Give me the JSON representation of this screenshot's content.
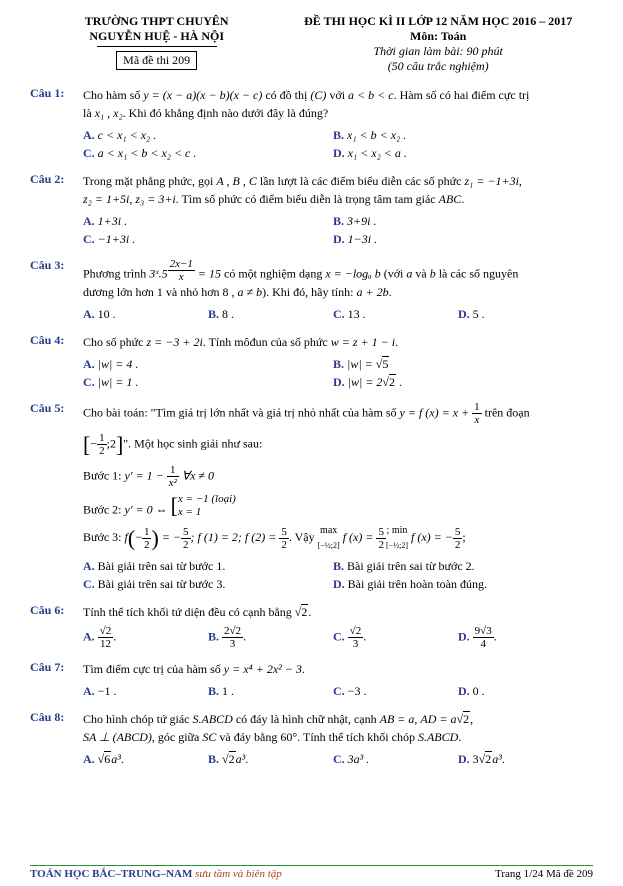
{
  "header": {
    "school_l1": "TRƯỜNG THPT CHUYÊN",
    "school_l2": "NGUYỄN HUỆ - HÀ NỘI",
    "code_label": "Mã đề thi 209",
    "title": "ĐỀ THI HỌC KÌ II LỚP 12 NĂM HỌC 2016 – 2017",
    "subject_label": "Môn: Toán",
    "time_label": "Thời gian làm bài: 90 phút",
    "count_label": "(50 câu trắc nghiệm)"
  },
  "labels": {
    "cau": "Câu",
    "A": "A.",
    "B": "B.",
    "C": "C.",
    "D": "D."
  },
  "q1": {
    "num": "Câu 1:",
    "t1": "Cho hàm số ",
    "f": "y = (x − a)(x − b)(x − c)",
    "t2": " có đồ thị ",
    "cg": "(C)",
    "t3": " với ",
    "cond": "a < b < c",
    "t4": ". Hàm số có hai điểm cực trị",
    "t5": "là ",
    "x12": "x₁ , x₂",
    "t6": ". Khi đó khẳng định nào dưới đây là đúng?",
    "A": "c < x₁ < x₂ .",
    "B": "x₁ < b < x₂ .",
    "C": "a < x₁ < b < x₂ < c .",
    "D": "x₁ < x₂ < a ."
  },
  "q2": {
    "num": "Câu 2:",
    "t1": "Trong mặt phẳng phức, gọi ",
    "abc": "A , B , C",
    "t2": " lần lượt là các điểm biểu diễn các số phức ",
    "z1": "z₁ = −1+3i",
    "t3": ",",
    "z2": "z₂ = 1+5i",
    "z3": "z₃ = 3+i",
    "t4": ". Tìm số phức có điểm biểu diễn là trọng tâm tam giác ",
    "abc2": "ABC",
    "t5": ".",
    "A": "1+3i .",
    "B": "3+9i .",
    "C": "−1+3i .",
    "D": "1−3i ."
  },
  "q3": {
    "num": "Câu 3:",
    "t1": "Phương trình ",
    "eq_a": "3ˣ.5",
    "eq_exp_num": "2x−1",
    "eq_exp_den": "x",
    "eq_b": " = 15",
    "t2": " có một nghiệm dạng ",
    "sol": "x = −logₐ b",
    "t3": " (với ",
    "ab": "a",
    "t4": " và ",
    "b": "b",
    "t5": " là các số nguyên",
    "t6": "dương lớn hơn 1 và nhỏ hơn 8 , ",
    "neq": "a ≠ b",
    "t7": "). Khi đó, hãy tính: ",
    "expr": "a + 2b",
    "t8": ".",
    "A": "10 .",
    "B": "8 .",
    "C": "13 .",
    "D": "5 ."
  },
  "q4": {
    "num": "Câu 4:",
    "t1": "Cho số phức ",
    "z": "z = −3 + 2i",
    "t2": ". Tính môđun của số phức ",
    "w": "w = z + 1 − i",
    "t3": ".",
    "Aeq": "|w| = 4 .",
    "Bw": "|w| = ",
    "r5": "5",
    "Ceq": "|w| = 1 .",
    "Dw": "|w| = 2",
    "r2": "2",
    "dot": " ."
  },
  "q5": {
    "num": "Câu 5:",
    "t1": "Cho bài toán: \"Tìm giá trị lớn nhất và giá trị nhỏ nhất của hàm số ",
    "yfx": "y = f (x) = x + ",
    "one": "1",
    "x": "x",
    "t2": " trên đoạn",
    "neg_half": "−",
    "half_num": "1",
    "half_den": "2",
    "two": "2",
    "t3": "\". Một học sinh giải như sau:",
    "b1l": "Bước 1: ",
    "b1eq": "y′ = 1 − ",
    "b1one": "1",
    "b1x2": "x²",
    "b1cond": "   ∀x ≠ 0",
    "b2l": "Bước 2: ",
    "b2eq": "y′ = 0 ⇔ ",
    "b2c1": "x = −1 (loại)",
    "b2c2": "x = 1",
    "b3l": "Bước 3: ",
    "b3f": "f",
    "b3lp": "(−",
    "b3hn": "1",
    "b3hd": "2",
    "b3rp": ")",
    "b3eq": " = −",
    "b3v5": "5",
    "b3v2": "2",
    "b3f1": "; f (1) = 2; f (2) = ",
    "b3vn": "5",
    "b3vd": "2",
    "b3vay": ". Vậy ",
    "b3max": "max",
    "b3int": "[−½;2]",
    "b3fx": " f (x) = ",
    "b3mn": "5",
    "b3md": "2",
    "b3min": "; min",
    "b3fx2": " f (x) = −",
    "b3mn2": "5",
    "b3md2": "2",
    "b3end": ";",
    "A": "Bài giải trên sai từ bước 1.",
    "B": "Bài giải trên sai từ bước 2.",
    "C": "Bài giải trên sai từ bước 3.",
    "D": "Bài giải trên hoàn toàn đúng."
  },
  "q6": {
    "num": "Câu 6:",
    "t1": "Tính thể tích khối tứ diện đều có cạnh bằng ",
    "r2": "2",
    "dot": ".",
    "An": "√2",
    "Ad": "12",
    "Bn": "2√2",
    "Bd": "3",
    "Cn": "√2",
    "Cd": "3",
    "Dn": "9√3",
    "Dd": "4"
  },
  "q7": {
    "num": "Câu 7:",
    "t1": "Tìm điểm cực trị của hàm số ",
    "eq": "y = x⁴ + 2x² − 3",
    "dot": ".",
    "A": "−1 .",
    "B": "1 .",
    "C": "−3 .",
    "D": "0 ."
  },
  "q8": {
    "num": "Câu 8:",
    "t1": "Cho hình chóp tứ giác ",
    "s": "S.ABCD",
    "t2": " có đáy là hình chữ nhật, cạnh ",
    "ab": "AB = a",
    "t3": ", ",
    "ad": "AD = a",
    "r2": "2",
    "t4": ",",
    "sa": "SA ⊥ (ABCD)",
    "t5": ", góc giữa ",
    "sc": "SC",
    "t6": " và đáy bằng ",
    "ang": "60°",
    "t7": ". Tính thể tích khối chóp ",
    "s2": "S.ABCD",
    "dot": ".",
    "A6": "6",
    "Aa3": "a³",
    "Adot": ".",
    "B2": "2",
    "Ba3": "a³",
    "Bdot": ".",
    "C": "3a³ .",
    "D3": "3",
    "D2": "2",
    "Da3": "a³",
    "Ddot": "."
  },
  "footer": {
    "brand": "TOÁN HỌC BẮC–TRUNG–NAM",
    "suffix": " sưu tầm và biên tập",
    "page": "Trang 1/24  Mã đề 209"
  }
}
